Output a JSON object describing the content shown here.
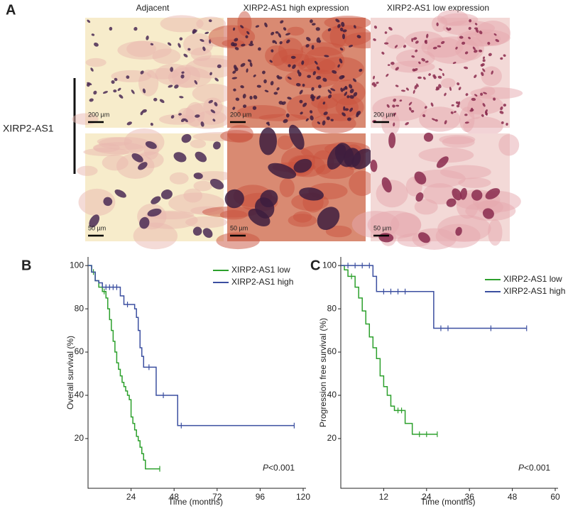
{
  "panel_a": {
    "label": "A",
    "columns": [
      "Adjacent",
      "XIRP2-AS1 high expression",
      "XIRP2-AS1 low expression"
    ],
    "row_label": "XIRP2-AS1",
    "scale_bars": [
      "200 µm",
      "50 µm"
    ]
  },
  "chart_data": [
    {
      "type": "line",
      "panel_label": "B",
      "x_label": "Time (months)",
      "y_label": "Overall survival (%)",
      "xlim": [
        0,
        120
      ],
      "ylim": [
        -3,
        104
      ],
      "xticks": [
        24,
        48,
        72,
        96,
        120
      ],
      "yticks": [
        20,
        40,
        60,
        80,
        100
      ],
      "annotation_italic": "P",
      "annotation": "<0.001",
      "series": [
        {
          "name": "XIRP2-AS1 low",
          "color": "#2ca02c",
          "x": [
            0,
            2,
            4,
            6,
            8,
            10,
            11,
            12,
            13,
            14,
            15,
            16,
            17,
            18,
            19,
            20,
            21,
            22,
            23,
            24,
            25,
            26,
            27,
            28,
            29,
            30,
            31,
            32,
            40
          ],
          "values": [
            100,
            97,
            93,
            90,
            88,
            85,
            80,
            75,
            70,
            65,
            60,
            55,
            52,
            49,
            46,
            44,
            42,
            40,
            38,
            30,
            27,
            24,
            21,
            19,
            16,
            13,
            10,
            6,
            6
          ],
          "censored": {
            "x": [
              3,
              9,
              40
            ],
            "values": [
              97,
              88,
              6
            ]
          }
        },
        {
          "name": "XIRP2-AS1 high",
          "color": "#3b4fa0",
          "x": [
            0,
            2,
            4,
            6,
            8,
            18,
            20,
            26,
            27,
            28,
            29,
            30,
            31,
            38,
            50,
            115
          ],
          "values": [
            100,
            97,
            93,
            92,
            90,
            86,
            82,
            80,
            76,
            70,
            62,
            58,
            53,
            40,
            26,
            26
          ],
          "censored": {
            "x": [
              10,
              12,
              14,
              16,
              22,
              34,
              42,
              52,
              115
            ],
            "values": [
              90,
              90,
              90,
              90,
              82,
              53,
              40,
              26,
              26
            ]
          }
        }
      ]
    },
    {
      "type": "line",
      "panel_label": "C",
      "x_label": "Time (months)",
      "y_label": "Progression free survival (%)",
      "xlim": [
        0,
        60
      ],
      "ylim": [
        -3,
        104
      ],
      "xticks": [
        12,
        24,
        36,
        48,
        60
      ],
      "yticks": [
        20,
        40,
        60,
        80,
        100
      ],
      "annotation_italic": "P",
      "annotation": "<0.001",
      "series": [
        {
          "name": "XIRP2-AS1 low",
          "color": "#2ca02c",
          "x": [
            0,
            1,
            2,
            4,
            5,
            6,
            7,
            8,
            9,
            10,
            11,
            12,
            13,
            14,
            15,
            18,
            20,
            27
          ],
          "values": [
            100,
            98,
            95,
            90,
            85,
            79,
            73,
            67,
            62,
            57,
            49,
            44,
            40,
            35,
            33,
            27,
            22,
            22
          ],
          "censored": {
            "x": [
              3,
              16,
              17,
              22,
              24,
              27
            ],
            "values": [
              95,
              33,
              33,
              22,
              22,
              22
            ]
          }
        },
        {
          "name": "XIRP2-AS1 high",
          "color": "#3b4fa0",
          "x": [
            0,
            9,
            10,
            26,
            52
          ],
          "values": [
            100,
            95,
            88,
            71,
            71
          ],
          "censored": {
            "x": [
              2,
              4,
              6,
              8,
              12,
              14,
              16,
              18,
              28,
              30,
              42,
              52
            ],
            "values": [
              100,
              100,
              100,
              100,
              88,
              88,
              88,
              88,
              71,
              71,
              71,
              71
            ]
          }
        }
      ]
    }
  ]
}
